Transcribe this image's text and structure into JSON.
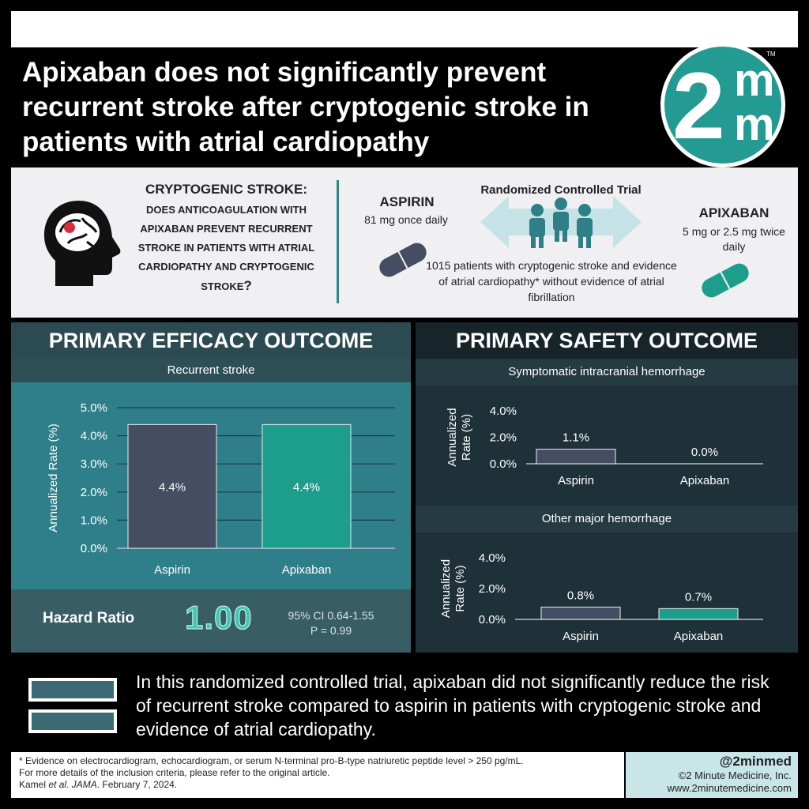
{
  "header": {
    "title_line1": "Apixaban does not significantly prevent",
    "title_line2": "recurrent stroke after cryptogenic stroke in",
    "title_line3": "patients with atrial cardiopathy",
    "logo_two": "2",
    "logo_m1": "m",
    "logo_m2": "m",
    "logo_tm": "TM"
  },
  "question": {
    "title": "CRYPTOGENIC STROKE:",
    "text": "DOES ANTICOAGULATION WITH APIXABAN PREVENT RECURRENT STROKE IN PATIENTS WITH ATRIAL CARDIOPATHY AND CRYPTOGENIC STROKE",
    "mark": "?"
  },
  "trial": {
    "arm1_name": "ASPIRIN",
    "arm1_dose": "81 mg once daily",
    "design": "Randomized Controlled Trial",
    "arm2_name": "APIXABAN",
    "arm2_dose": "5 mg or 2.5 mg twice daily",
    "population": "1015 patients with cryptogenic stroke and evidence of atrial cardiopathy* without evidence of atrial fibrillation"
  },
  "efficacy": {
    "heading": "PRIMARY EFFICACY OUTCOME",
    "subheading": "Recurrent stroke",
    "hr_label": "Hazard Ratio",
    "hr_value": "1.00",
    "ci": "95% CI 0.64-1.55",
    "p": "P = 0.99"
  },
  "safety": {
    "heading": "PRIMARY SAFETY OUTCOME",
    "sub1": "Symptomatic intracranial hemorrhage",
    "sub2": "Other major hemorrhage"
  },
  "conclusion": "In this randomized controlled trial, apixaban did not significantly reduce the risk of recurrent stroke compared to aspirin in patients with cryptogenic stroke and evidence of atrial cardiopathy.",
  "footer": {
    "note1": "* Evidence on electrocardiogram, echocardiogram, or serum N-terminal pro-B-type natriuretic peptide level > 250 pg/mL.",
    "note2": "For more details of the inclusion criteria, please refer to the original article.",
    "cite_authors": "Kamel ",
    "cite_etal": "et al",
    "cite_dot": ". ",
    "cite_journal": "JAMA",
    "cite_date": ". February 7, 2024.",
    "handle": "@2minmed",
    "copyright": "©2 Minute Medicine, Inc.",
    "website": "www.2minutemedicine.com"
  },
  "colors": {
    "aspirin": "#444d62",
    "apixaban": "#1d9e8c",
    "accent": "#239b92"
  },
  "chart_data": [
    {
      "type": "bar",
      "title": "Recurrent stroke",
      "categories": [
        "Aspirin",
        "Apixaban"
      ],
      "values": [
        4.4,
        4.4
      ],
      "value_labels": [
        "4.4%",
        "4.4%"
      ],
      "ylabel": "Annualized Rate (%)",
      "ylim": [
        0,
        5.0
      ],
      "yticks": [
        "0.0%",
        "1.0%",
        "2.0%",
        "3.0%",
        "4.0%",
        "5.0%"
      ],
      "grid": true
    },
    {
      "type": "bar",
      "title": "Symptomatic intracranial hemorrhage",
      "categories": [
        "Aspirin",
        "Apixaban"
      ],
      "values": [
        1.1,
        0.0
      ],
      "value_labels": [
        "1.1%",
        "0.0%"
      ],
      "ylabel_line1": "Annualized",
      "ylabel_line2": "Rate (%)",
      "ylim": [
        0,
        4.0
      ],
      "yticks": [
        "0.0%",
        "2.0%",
        "4.0%"
      ],
      "grid": false
    },
    {
      "type": "bar",
      "title": "Other major hemorrhage",
      "categories": [
        "Aspirin",
        "Apixaban"
      ],
      "values": [
        0.8,
        0.7
      ],
      "value_labels": [
        "0.8%",
        "0.7%"
      ],
      "ylabel_line1": "Annualized",
      "ylabel_line2": "Rate (%)",
      "ylim": [
        0,
        4.0
      ],
      "yticks": [
        "0.0%",
        "2.0%",
        "4.0%"
      ],
      "grid": false
    }
  ]
}
